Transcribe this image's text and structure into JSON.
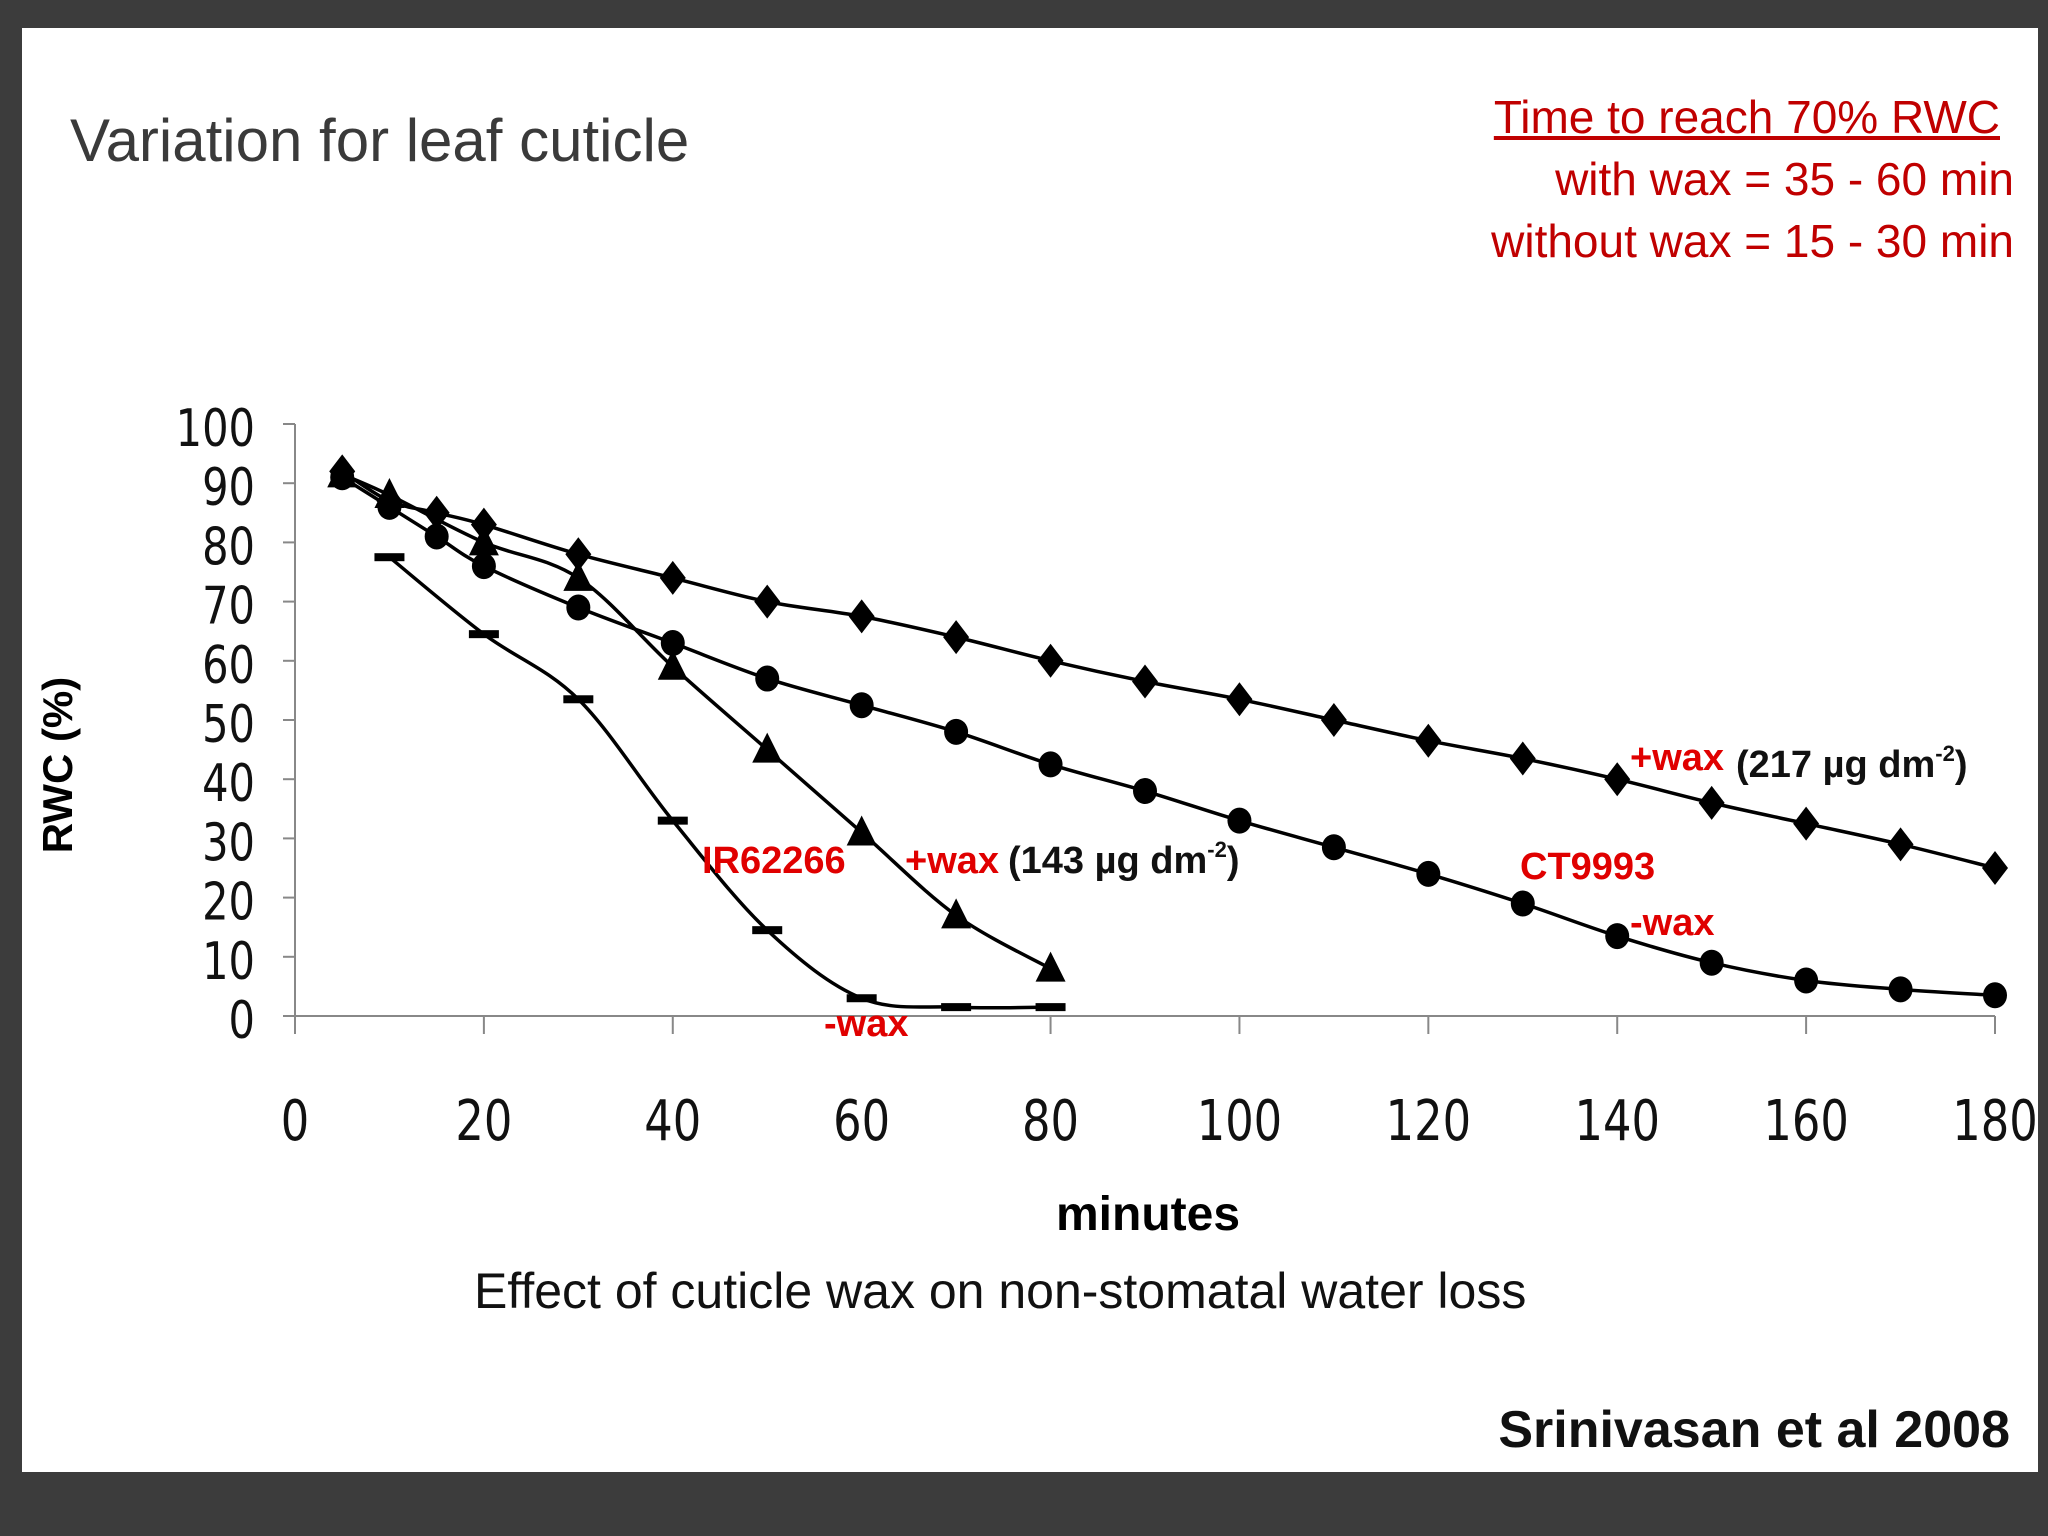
{
  "slide": {
    "title": "Variation for leaf cuticle",
    "note": {
      "heading": "Time to reach 70% RWC",
      "line1": "with wax = 35 - 60 min",
      "line2": "without wax = 15 - 30 min"
    },
    "caption": "Effect of cuticle wax on non-stomatal water loss",
    "source": "Srinivasan et al 2008"
  },
  "chart_data": {
    "type": "line",
    "xlabel": "minutes",
    "ylabel": "RWC (%)",
    "xlim": [
      0,
      180
    ],
    "ylim": [
      0,
      100
    ],
    "x_ticks": [
      "0",
      "20",
      "40",
      "60",
      "80",
      "100",
      "120",
      "140",
      "160",
      "180"
    ],
    "y_ticks": [
      "0",
      "10",
      "20",
      "30",
      "40",
      "50",
      "60",
      "70",
      "80",
      "90",
      "100"
    ],
    "grid": false,
    "series": [
      {
        "marker": "diamond",
        "x": [
          5,
          10,
          15,
          20,
          30,
          40,
          50,
          60,
          70,
          80,
          90,
          100,
          110,
          120,
          130,
          140,
          150,
          160,
          170,
          180
        ],
        "y": [
          92,
          87,
          85,
          83,
          78,
          74,
          70,
          67.5,
          64,
          60,
          56.5,
          53.5,
          50,
          46.5,
          43.5,
          40,
          36,
          32.5,
          29,
          25
        ]
      },
      {
        "marker": "circle",
        "x": [
          5,
          10,
          15,
          20,
          30,
          40,
          50,
          60,
          70,
          80,
          90,
          100,
          110,
          120,
          130,
          140,
          150,
          160,
          170,
          180
        ],
        "y": [
          91,
          86,
          81,
          76,
          69,
          63,
          57,
          52.5,
          48,
          42.5,
          38,
          33,
          28.5,
          24,
          19,
          13.5,
          9,
          6,
          4.5,
          3.5
        ]
      },
      {
        "marker": "triangle",
        "x": [
          5,
          10,
          20,
          30,
          40,
          50,
          60,
          70,
          80
        ],
        "y": [
          91.5,
          88,
          80,
          74,
          59,
          45,
          31,
          17,
          8
        ]
      },
      {
        "marker": "dash",
        "x": [
          10,
          20,
          30,
          40,
          50,
          60,
          70,
          80
        ],
        "y": [
          77.5,
          64.5,
          53.5,
          33,
          14.5,
          3,
          1.5,
          1.5
        ]
      }
    ],
    "annotations": {
      "ir62266": "IR62266",
      "ir_wax_plus": "+wax",
      "ir_wax_plus_value": "(143 µg dm",
      "ir_wax_minus": "-wax",
      "ct9993": "CT9993",
      "ct_wax_plus": "+wax",
      "ct_wax_plus_value": "(217 µg dm",
      "ct_wax_minus": "-wax",
      "superscript": "-2",
      "close": ")"
    },
    "colors": {
      "series": "#000000",
      "annotation": "#e00000",
      "note": "#c00000"
    }
  }
}
